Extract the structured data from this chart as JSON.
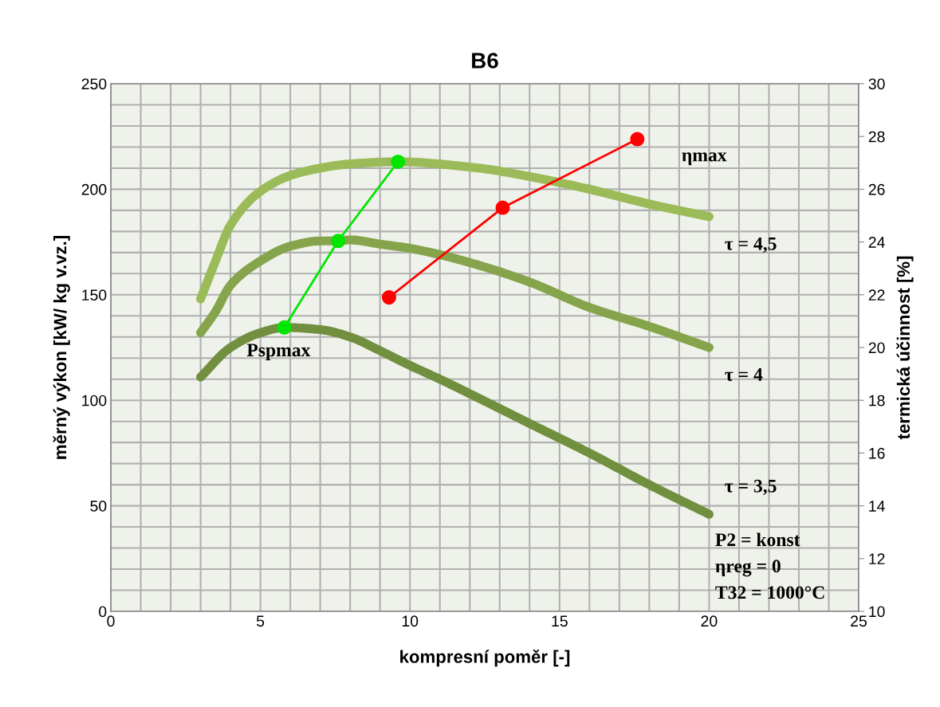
{
  "chart_data": {
    "type": "line",
    "title": "B6",
    "xlabel": "kompresní poměr [-]",
    "ylabel": "měrný výkon [kW/ kg v.vz.]",
    "y2label": "termická účinnost [%]",
    "xlim": [
      0,
      25
    ],
    "xticks": [
      0,
      {
        "value": 1,
        "label": null
      },
      {
        "value": 2,
        "label": null
      },
      {
        "value": 3,
        "label": null
      },
      {
        "value": 4,
        "label": null
      },
      5,
      {
        "value": 6,
        "label": null
      },
      {
        "value": 7,
        "label": null
      },
      {
        "value": 8,
        "label": null
      },
      {
        "value": 9,
        "label": null
      },
      10,
      {
        "value": 11,
        "label": null
      },
      {
        "value": 12,
        "label": null
      },
      {
        "value": 13,
        "label": null
      },
      {
        "value": 14,
        "label": null
      },
      15,
      {
        "value": 16,
        "label": null
      },
      {
        "value": 17,
        "label": null
      },
      {
        "value": 18,
        "label": null
      },
      {
        "value": 19,
        "label": null
      },
      20,
      {
        "value": 21,
        "label": null
      },
      {
        "value": 22,
        "label": null
      },
      {
        "value": 23,
        "label": null
      },
      {
        "value": 24,
        "label": null
      },
      25
    ],
    "ylim": [
      0,
      250
    ],
    "yticks": [
      0,
      {
        "value": 10,
        "label": null
      },
      {
        "value": 20,
        "label": null
      },
      {
        "value": 30,
        "label": null
      },
      {
        "value": 40,
        "label": null
      },
      50,
      {
        "value": 60,
        "label": null
      },
      {
        "value": 70,
        "label": null
      },
      {
        "value": 80,
        "label": null
      },
      {
        "value": 90,
        "label": null
      },
      100,
      {
        "value": 110,
        "label": null
      },
      {
        "value": 120,
        "label": null
      },
      {
        "value": 130,
        "label": null
      },
      {
        "value": 140,
        "label": null
      },
      150,
      {
        "value": 160,
        "label": null
      },
      {
        "value": 170,
        "label": null
      },
      {
        "value": 180,
        "label": null
      },
      {
        "value": 190,
        "label": null
      },
      200,
      {
        "value": 210,
        "label": null
      },
      {
        "value": 220,
        "label": null
      },
      {
        "value": 230,
        "label": null
      },
      {
        "value": 240,
        "label": null
      },
      250
    ],
    "y2lim": [
      10,
      30
    ],
    "y2ticks": [
      10,
      12,
      14,
      16,
      18,
      20,
      22,
      24,
      26,
      28,
      30
    ],
    "grid": true,
    "series": [
      {
        "name": "τ = 4,5",
        "color": "#9bbb59",
        "marker": "none",
        "x": [
          3,
          3.5,
          4,
          5,
          6,
          7,
          8,
          9.6,
          12.3,
          14,
          16,
          18,
          20
        ],
        "values": [
          148,
          166,
          183,
          199,
          206.5,
          210,
          212,
          213,
          210,
          206,
          200,
          193,
          187
        ]
      },
      {
        "name": "τ = 4",
        "color": "#86a44b",
        "marker": "none",
        "x": [
          3,
          3.5,
          4,
          5,
          6,
          7,
          7.6,
          8,
          9,
          10,
          11,
          12.3,
          14,
          16,
          18,
          20
        ],
        "values": [
          132,
          142,
          154.5,
          166,
          173,
          175.5,
          175.5,
          176,
          174,
          172,
          169,
          164,
          156,
          144,
          135,
          125
        ]
      },
      {
        "name": "τ = 3,5",
        "color": "#718f3f",
        "marker": "none",
        "x": [
          3,
          4,
          5,
          5.8,
          7,
          8,
          9,
          10,
          11,
          12.3,
          14,
          16,
          18,
          20
        ],
        "values": [
          111,
          125,
          132,
          134.5,
          133.5,
          130,
          123.5,
          116.5,
          110,
          101,
          89,
          75,
          60,
          46
        ]
      },
      {
        "name": "Pspmax",
        "color": "#00e600",
        "marker": "circle",
        "x": [
          5.8,
          7.6,
          9.6
        ],
        "values": [
          134.5,
          175.5,
          213
        ]
      },
      {
        "name": "ηmax",
        "color": "#ff0000",
        "marker": "circle",
        "axis": "y2",
        "x": [
          9.3,
          13.1,
          17.6
        ],
        "values": [
          21.9,
          25.3,
          27.9
        ]
      }
    ],
    "annotations": [
      "P2 = konst",
      "ηreg = 0",
      "T32 = 1000°C"
    ]
  }
}
